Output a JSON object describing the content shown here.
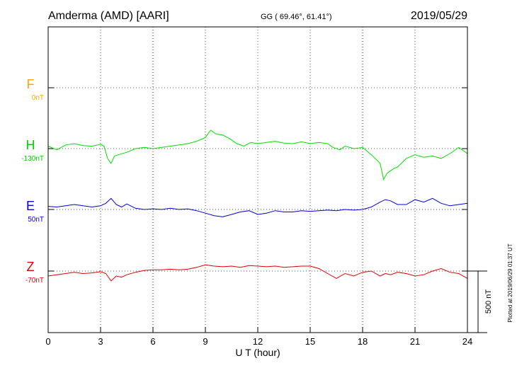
{
  "header": {
    "station": "Amderma (AMD)  [AARI]",
    "coords": "GG ( 69.46°,  61.41°)",
    "date": "2019/05/29"
  },
  "plotted_note": "Plotted at 2019/06/29 01:37 UT",
  "scale_label": "500 nT",
  "colors": {
    "F": "#ffa500",
    "H": "#00e000",
    "E": "#0000e0",
    "Z": "#e00000",
    "frame": "#000000"
  },
  "chart_data": {
    "type": "line",
    "xlabel": "U T (hour)",
    "xlim": [
      0,
      24
    ],
    "xticks": [
      "0",
      "3",
      "6",
      "9",
      "12",
      "15",
      "18",
      "21",
      "24"
    ],
    "series": [
      {
        "name": "F",
        "baseline_label": "0nT",
        "x": [],
        "y": []
      },
      {
        "name": "H",
        "baseline_label": "-130nT",
        "x": [
          0,
          0.5,
          1,
          1.5,
          2,
          2.5,
          3,
          3.2,
          3.4,
          3.6,
          3.8,
          4,
          4.5,
          5,
          5.5,
          6,
          6.5,
          7,
          7.5,
          8,
          8.5,
          9,
          9.3,
          9.6,
          10,
          10.4,
          10.8,
          11.2,
          11.6,
          12,
          12.5,
          13,
          13.5,
          14,
          14.5,
          15,
          15.5,
          16,
          16.3,
          16.7,
          17,
          17.5,
          18,
          18.5,
          19,
          19.2,
          19.4,
          19.6,
          19.8,
          20,
          20.5,
          21,
          21.5,
          22,
          22.5,
          23,
          23.5,
          24
        ],
        "y": [
          20,
          -10,
          30,
          40,
          25,
          20,
          35,
          20,
          -80,
          -120,
          -60,
          -50,
          -30,
          0,
          10,
          0,
          10,
          20,
          30,
          40,
          60,
          90,
          150,
          120,
          110,
          80,
          40,
          20,
          50,
          40,
          50,
          60,
          45,
          40,
          55,
          40,
          50,
          40,
          10,
          -10,
          20,
          0,
          10,
          -50,
          -120,
          -250,
          -200,
          -180,
          -160,
          -150,
          -80,
          -50,
          -70,
          -60,
          -80,
          -40,
          10,
          -40
        ]
      },
      {
        "name": "E",
        "baseline_label": "50nT",
        "x": [
          0,
          0.5,
          1,
          1.5,
          2,
          2.5,
          3,
          3.3,
          3.6,
          3.9,
          4.2,
          4.5,
          5,
          5.5,
          6,
          6.5,
          7,
          7.5,
          8,
          8.5,
          9,
          9.5,
          10,
          10.5,
          11,
          11.5,
          12,
          12.5,
          13,
          13.5,
          14,
          14.5,
          15,
          15.5,
          16,
          16.5,
          17,
          17.5,
          18,
          18.5,
          19,
          19.3,
          19.6,
          20,
          20.5,
          21,
          21.5,
          22,
          22.5,
          23,
          23.5,
          24
        ],
        "y": [
          25,
          20,
          30,
          40,
          30,
          20,
          30,
          50,
          90,
          40,
          20,
          45,
          10,
          0,
          5,
          0,
          10,
          0,
          5,
          -10,
          -30,
          -50,
          -60,
          -40,
          -20,
          -10,
          -40,
          -30,
          -10,
          -20,
          -20,
          -10,
          -15,
          -10,
          -5,
          -10,
          0,
          -5,
          0,
          20,
          60,
          80,
          70,
          40,
          40,
          80,
          60,
          90,
          50,
          30,
          40,
          50
        ]
      },
      {
        "name": "Z",
        "baseline_label": "-70nT",
        "x": [
          0,
          0.5,
          1,
          1.5,
          2,
          2.5,
          3,
          3.3,
          3.6,
          3.9,
          4.2,
          4.5,
          5,
          5.5,
          6,
          6.5,
          7,
          7.5,
          8,
          8.5,
          9,
          9.5,
          10,
          10.5,
          11,
          11.5,
          12,
          12.5,
          13,
          13.5,
          14,
          14.5,
          15,
          15.5,
          16,
          16.5,
          17,
          17.5,
          18,
          18.5,
          19,
          19.3,
          19.6,
          20,
          20.5,
          21,
          21.5,
          22,
          22.5,
          23,
          23.5,
          24
        ],
        "y": [
          -40,
          -30,
          -20,
          -10,
          -20,
          -15,
          -5,
          -20,
          -80,
          -40,
          -50,
          -30,
          -10,
          5,
          10,
          10,
          15,
          10,
          15,
          30,
          50,
          40,
          35,
          40,
          30,
          45,
          40,
          35,
          40,
          30,
          35,
          40,
          40,
          20,
          -20,
          -60,
          -20,
          -40,
          -10,
          0,
          -40,
          -20,
          -30,
          -10,
          -20,
          -40,
          -30,
          0,
          20,
          -10,
          -20,
          -60
        ]
      }
    ]
  }
}
